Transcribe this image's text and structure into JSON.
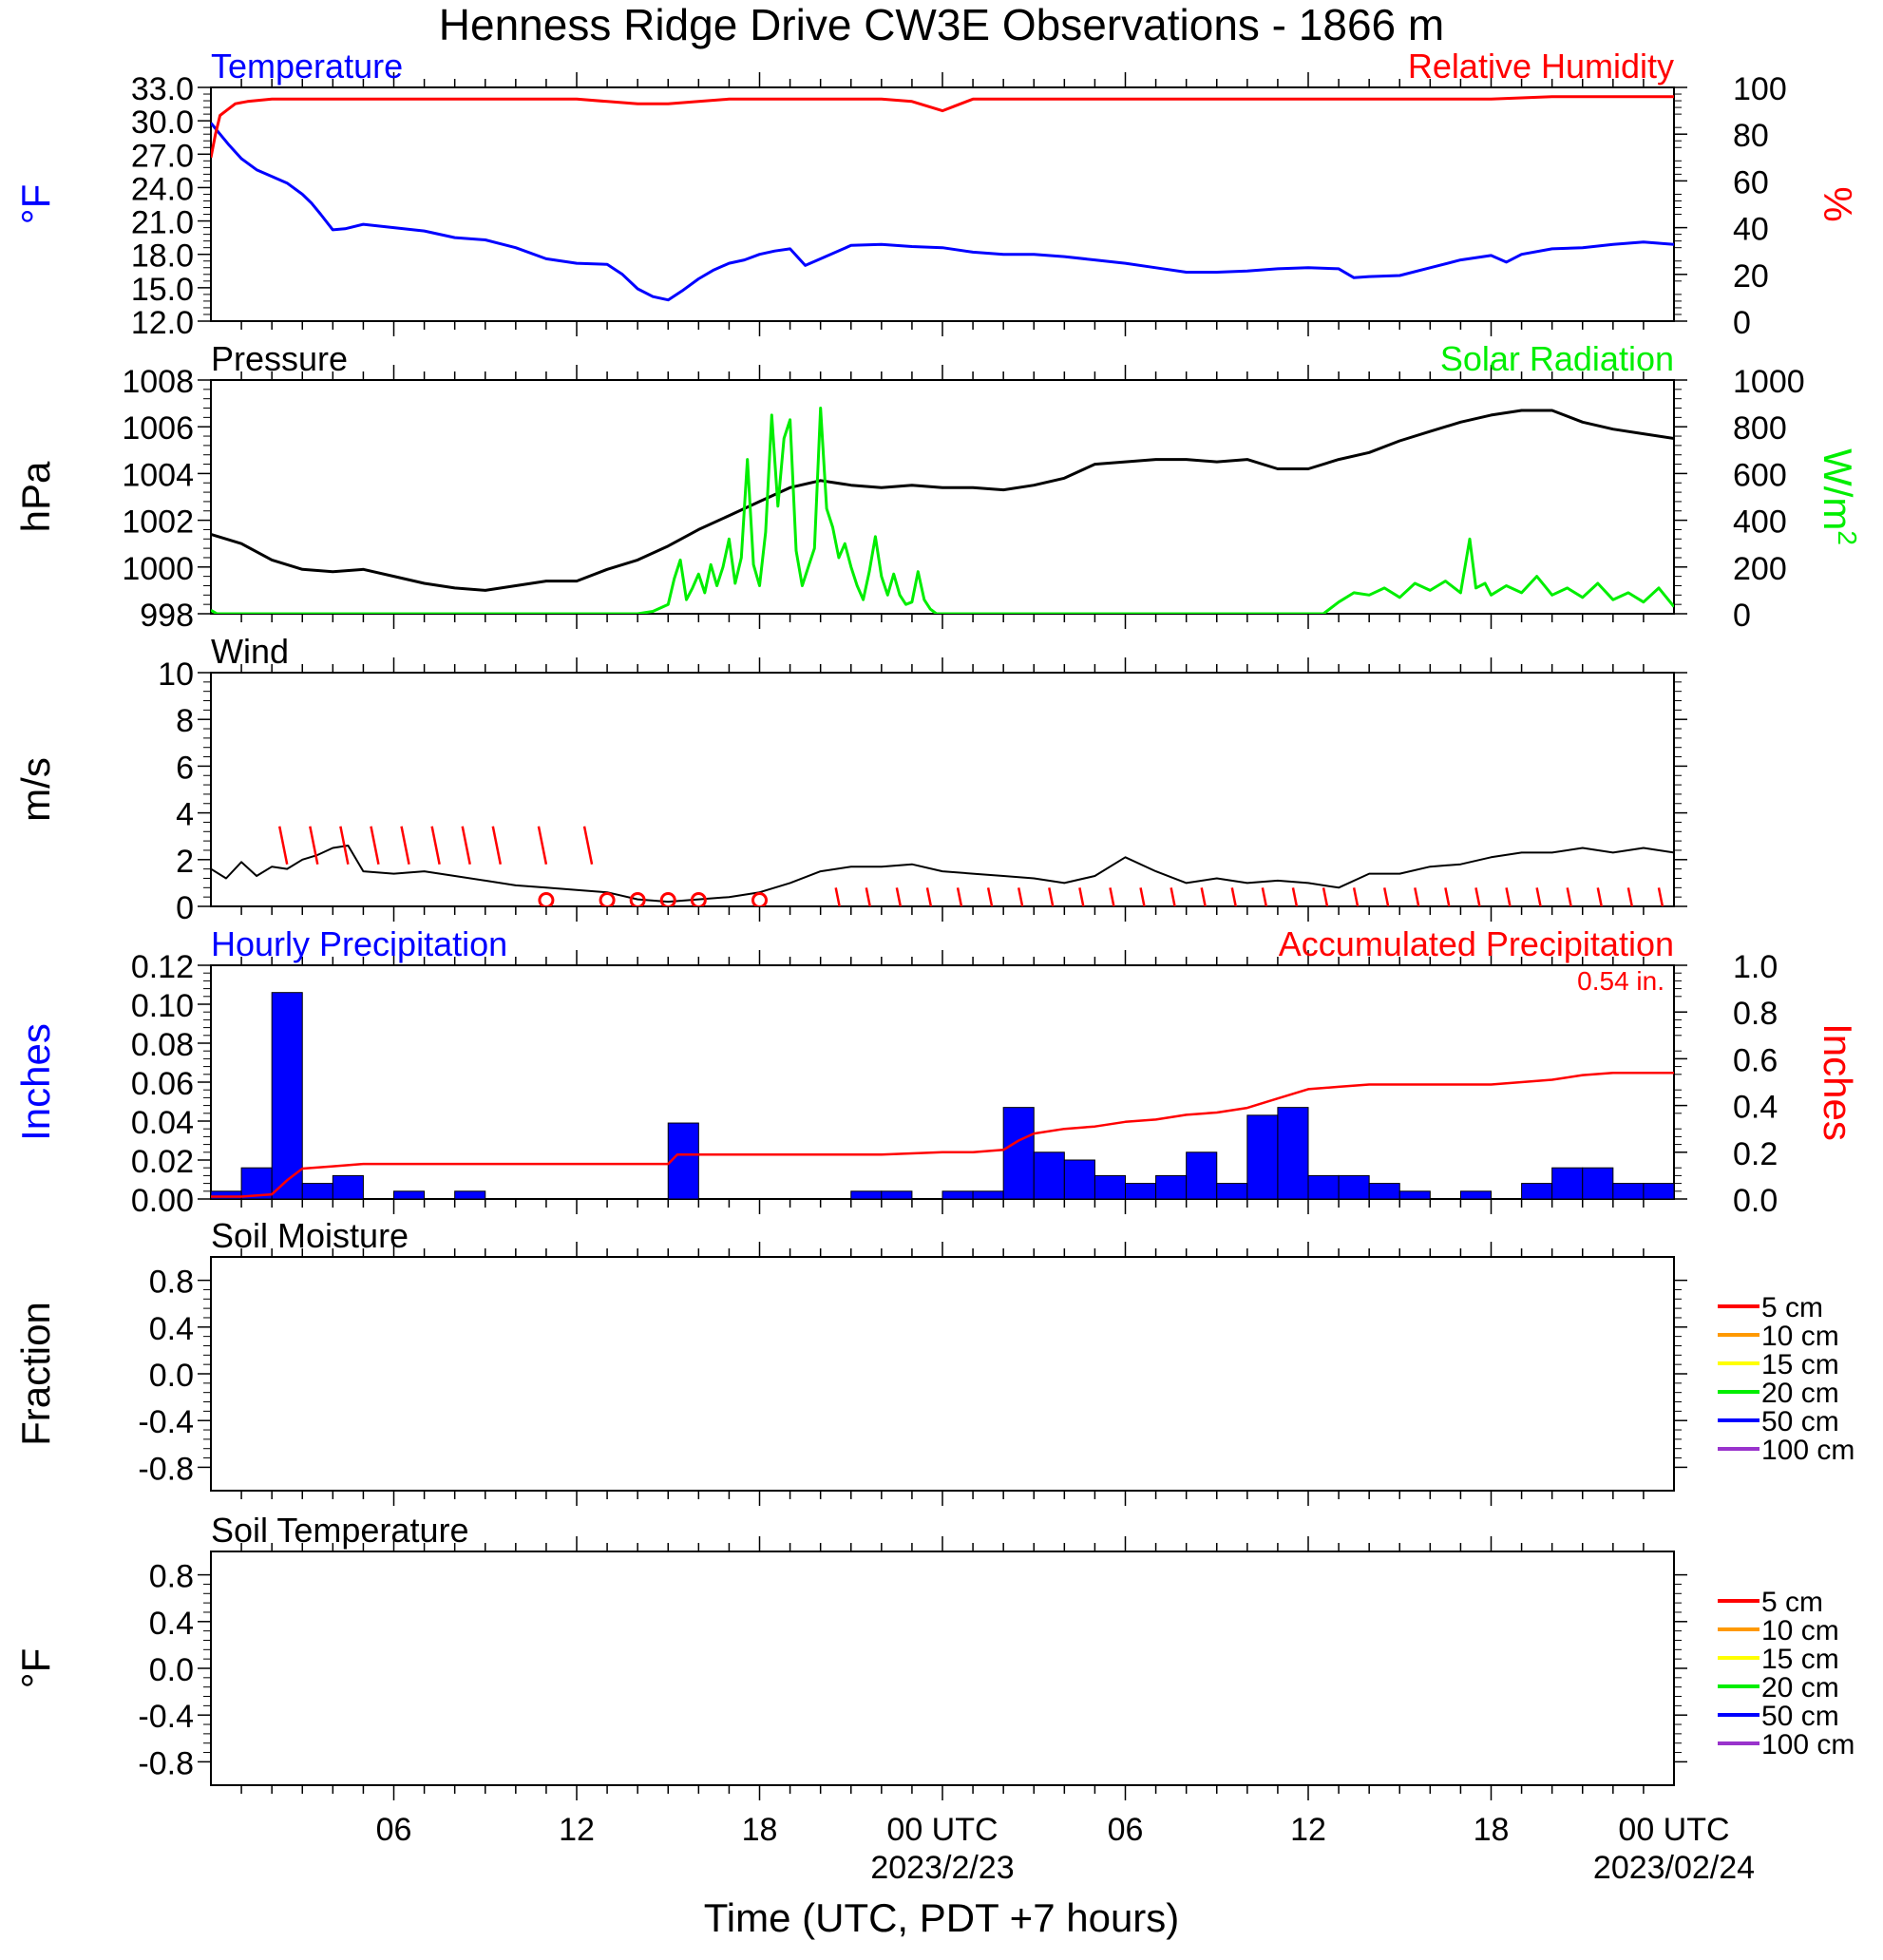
{
  "page": {
    "title": "Henness Ridge Drive CW3E Observations - 1866 m",
    "xlabel": "Time (UTC, PDT +7 hours)"
  },
  "time_axis": {
    "range_hours": [
      0,
      48
    ],
    "tick_hours": [
      6,
      12,
      18,
      24,
      30,
      36,
      42,
      48
    ],
    "tick_labels": [
      "06",
      "12",
      "18",
      "00 UTC",
      "06",
      "12",
      "18",
      "00 UTC"
    ],
    "date_labels": [
      {
        "hour": 24,
        "text": "2023/2/23"
      },
      {
        "hour": 48,
        "text": "2023/02/24"
      }
    ]
  },
  "colors": {
    "temperature": "#0000ff",
    "humidity": "#ff0000",
    "pressure": "#000000",
    "solar": "#00ee00",
    "wind": "#000000",
    "barb": "#ff0000",
    "hourly_precip": "#0000ff",
    "accum_precip": "#ff0000"
  },
  "chart_data": [
    {
      "id": "temp_rh",
      "type": "line",
      "title_left": "Temperature",
      "title_right": "Relative Humidity",
      "ylabel_left": "°F",
      "ylabel_right": "%",
      "ylim_left": [
        12.0,
        33.0
      ],
      "yticks_left": [
        "12.0",
        "15.0",
        "18.0",
        "21.0",
        "24.0",
        "27.0",
        "30.0",
        "33.0"
      ],
      "ylim_right": [
        0,
        100
      ],
      "yticks_right": [
        "0",
        "20",
        "40",
        "60",
        "80",
        "100"
      ],
      "series": [
        {
          "name": "Temperature",
          "axis": "left",
          "color": "#0000ff",
          "x": [
            0,
            0.3,
            0.6,
            1,
            1.5,
            2,
            2.5,
            3,
            3.3,
            3.6,
            4,
            4.4,
            5,
            6,
            7,
            8,
            9,
            10,
            11,
            12,
            13,
            13.5,
            14,
            14.5,
            15,
            15.5,
            16,
            16.5,
            17,
            17.5,
            18,
            18.5,
            19,
            19.5,
            20,
            20.5,
            21,
            22,
            23,
            24,
            25,
            26,
            27,
            28,
            29,
            30,
            31,
            32,
            33,
            34,
            35,
            36,
            37,
            37.5,
            38,
            39,
            40,
            41,
            42,
            42.5,
            43,
            44,
            45,
            46,
            47,
            48
          ],
          "values": [
            29.8,
            28.8,
            27.8,
            26.6,
            25.6,
            25.0,
            24.4,
            23.4,
            22.6,
            21.6,
            20.2,
            20.3,
            20.7,
            20.4,
            20.1,
            19.5,
            19.3,
            18.6,
            17.6,
            17.2,
            17.1,
            16.2,
            14.9,
            14.2,
            13.9,
            14.8,
            15.8,
            16.6,
            17.2,
            17.5,
            18.0,
            18.3,
            18.5,
            17.0,
            17.6,
            18.2,
            18.8,
            18.9,
            18.7,
            18.6,
            18.2,
            18.0,
            18.0,
            17.8,
            17.5,
            17.2,
            16.8,
            16.4,
            16.4,
            16.5,
            16.7,
            16.8,
            16.7,
            15.9,
            16.0,
            16.1,
            16.8,
            17.5,
            17.9,
            17.3,
            18.0,
            18.5,
            18.6,
            18.9,
            19.1,
            18.9
          ]
        },
        {
          "name": "Relative Humidity",
          "axis": "right",
          "color": "#ff0000",
          "x": [
            0,
            0.15,
            0.3,
            0.5,
            0.8,
            1.2,
            2,
            4,
            6,
            8,
            10,
            12,
            13,
            14,
            15,
            16,
            17,
            18,
            19,
            20,
            21,
            22,
            23,
            23.5,
            24,
            24.4,
            25,
            26,
            28,
            30,
            32,
            34,
            36,
            38,
            40,
            42,
            44,
            46,
            48
          ],
          "values": [
            70,
            80,
            88,
            90,
            93,
            94,
            95,
            95,
            95,
            95,
            95,
            95,
            94,
            93,
            93,
            94,
            95,
            95,
            95,
            95,
            95,
            95,
            94,
            92,
            90,
            92,
            95,
            95,
            95,
            95,
            95,
            95,
            95,
            95,
            95,
            95,
            96,
            96,
            96
          ]
        }
      ]
    },
    {
      "id": "pressure_solar",
      "type": "line",
      "title_left": "Pressure",
      "title_right": "Solar Radiation",
      "ylabel_left": "hPa",
      "ylabel_right": "W/m",
      "ylabel_right_sup": "2",
      "ylim_left": [
        998,
        1008
      ],
      "yticks_left": [
        "998",
        "1000",
        "1002",
        "1004",
        "1006",
        "1008"
      ],
      "ylim_right": [
        0,
        1000
      ],
      "yticks_right": [
        "0",
        "200",
        "400",
        "600",
        "800",
        "1000"
      ],
      "series": [
        {
          "name": "Pressure",
          "axis": "left",
          "color": "#000000",
          "x": [
            0,
            1,
            2,
            3,
            4,
            5,
            6,
            7,
            8,
            9,
            10,
            11,
            12,
            13,
            14,
            15,
            16,
            17,
            18,
            19,
            20,
            21,
            22,
            23,
            24,
            25,
            26,
            27,
            28,
            29,
            30,
            31,
            32,
            33,
            34,
            35,
            36,
            37,
            38,
            39,
            40,
            41,
            42,
            43,
            44,
            45,
            46,
            47,
            48
          ],
          "values": [
            1001.4,
            1001.0,
            1000.3,
            999.9,
            999.8,
            999.9,
            999.6,
            999.3,
            999.1,
            999.0,
            999.2,
            999.4,
            999.4,
            999.9,
            1000.3,
            1000.9,
            1001.6,
            1002.2,
            1002.8,
            1003.4,
            1003.7,
            1003.5,
            1003.4,
            1003.5,
            1003.4,
            1003.4,
            1003.3,
            1003.5,
            1003.8,
            1004.4,
            1004.5,
            1004.6,
            1004.6,
            1004.5,
            1004.6,
            1004.2,
            1004.2,
            1004.6,
            1004.9,
            1005.4,
            1005.8,
            1006.2,
            1006.5,
            1006.7,
            1006.7,
            1006.2,
            1005.9,
            1005.7,
            1005.5
          ]
        },
        {
          "name": "Solar Radiation",
          "axis": "right",
          "color": "#00ee00",
          "x": [
            0,
            0.2,
            0.5,
            14.0,
            14.5,
            15.0,
            15.2,
            15.4,
            15.6,
            15.8,
            16.0,
            16.2,
            16.4,
            16.6,
            16.8,
            17.0,
            17.2,
            17.4,
            17.6,
            17.8,
            18.0,
            18.2,
            18.4,
            18.6,
            18.8,
            19.0,
            19.2,
            19.4,
            19.6,
            19.8,
            20.0,
            20.2,
            20.4,
            20.6,
            20.8,
            21.0,
            21.2,
            21.4,
            21.6,
            21.8,
            22.0,
            22.2,
            22.4,
            22.6,
            22.8,
            23.0,
            23.2,
            23.4,
            23.6,
            23.8,
            24.0,
            24.4,
            24.8,
            36.5,
            37.0,
            37.5,
            38.0,
            38.5,
            39.0,
            39.5,
            40.0,
            40.5,
            41.0,
            41.3,
            41.5,
            41.8,
            42.0,
            42.5,
            43.0,
            43.5,
            44.0,
            44.5,
            45.0,
            45.5,
            46.0,
            46.5,
            47.0,
            47.5,
            48.0
          ],
          "values": [
            15,
            0,
            0,
            0,
            10,
            40,
            150,
            230,
            60,
            110,
            170,
            90,
            210,
            120,
            200,
            320,
            130,
            240,
            660,
            210,
            120,
            350,
            850,
            460,
            750,
            830,
            270,
            120,
            200,
            280,
            880,
            450,
            370,
            240,
            300,
            200,
            120,
            60,
            180,
            330,
            160,
            80,
            170,
            80,
            40,
            50,
            180,
            60,
            20,
            0,
            0,
            0,
            0,
            0,
            50,
            90,
            80,
            110,
            70,
            130,
            100,
            140,
            90,
            320,
            110,
            130,
            80,
            120,
            90,
            160,
            80,
            110,
            70,
            130,
            60,
            90,
            50,
            110,
            30
          ]
        }
      ]
    },
    {
      "id": "wind",
      "type": "line",
      "title_left": "Wind",
      "ylabel_left": "m/s",
      "ylim_left": [
        0,
        10
      ],
      "yticks_left": [
        "0",
        "2",
        "4",
        "6",
        "8",
        "10"
      ],
      "series": [
        {
          "name": "Wind",
          "axis": "left",
          "color": "#000000",
          "x": [
            0,
            0.5,
            1,
            1.5,
            2,
            2.5,
            3,
            3.5,
            4,
            4.5,
            5,
            6,
            7,
            8,
            9,
            10,
            11,
            12,
            13,
            14,
            15,
            16,
            17,
            18,
            19,
            20,
            21,
            22,
            23,
            24,
            25,
            26,
            27,
            28,
            29,
            30,
            31,
            32,
            33,
            34,
            35,
            36,
            37,
            38,
            39,
            40,
            41,
            42,
            43,
            44,
            45,
            46,
            47,
            48
          ],
          "values": [
            1.6,
            1.2,
            1.9,
            1.3,
            1.7,
            1.6,
            2.0,
            2.2,
            2.5,
            2.6,
            1.5,
            1.4,
            1.5,
            1.3,
            1.1,
            0.9,
            0.8,
            0.7,
            0.6,
            0.3,
            0.2,
            0.3,
            0.4,
            0.6,
            1.0,
            1.5,
            1.7,
            1.7,
            1.8,
            1.5,
            1.4,
            1.3,
            1.2,
            1.0,
            1.3,
            2.1,
            1.5,
            1.0,
            1.2,
            1.0,
            1.1,
            1.0,
            0.8,
            1.4,
            1.4,
            1.7,
            1.8,
            2.1,
            2.3,
            2.3,
            2.5,
            2.3,
            2.5,
            2.3
          ]
        }
      ],
      "barbs": {
        "description": "Wind direction barbs (red) and calm markers (red circles)",
        "hours": [
          2.5,
          3.5,
          4.5,
          5.5,
          6.5,
          7.5,
          8.5,
          9.5,
          11,
          12.5,
          20.5,
          21.5,
          22.5,
          23.5,
          24.5,
          25.5,
          26.5,
          27.5,
          28.5,
          29.5,
          30.5,
          31.5,
          32.5,
          33.5,
          34.5,
          35.5,
          36.5,
          37.5,
          38.5,
          39.5,
          40.5,
          41.5,
          42.5,
          43.5,
          44.5,
          45.5,
          46.5,
          47.5
        ],
        "calm_hours": [
          11,
          13,
          14,
          15,
          16,
          18
        ]
      }
    },
    {
      "id": "precip",
      "type": "bar",
      "title_left": "Hourly Precipitation",
      "title_right": "Accumulated Precipitation",
      "total_label": "0.54 in.",
      "ylabel_left": "Inches",
      "ylabel_right": "Inches",
      "ylim_left": [
        0.0,
        0.12
      ],
      "yticks_left": [
        "0.00",
        "0.02",
        "0.04",
        "0.06",
        "0.08",
        "0.10",
        "0.12"
      ],
      "ylim_right": [
        0.0,
        1.0
      ],
      "yticks_right": [
        "0.0",
        "0.2",
        "0.4",
        "0.6",
        "0.8",
        "1.0"
      ],
      "series": [
        {
          "name": "Hourly Precipitation",
          "axis": "left",
          "color": "#0000ff",
          "x": [
            0,
            1,
            2,
            3,
            4,
            6,
            8,
            15,
            21,
            22,
            24,
            25,
            26,
            27,
            28,
            29,
            30,
            31,
            32,
            33,
            34,
            35,
            36,
            37,
            38,
            39,
            41,
            43,
            44,
            45,
            46,
            47
          ],
          "values": [
            0.004,
            0.016,
            0.106,
            0.008,
            0.012,
            0.004,
            0.004,
            0.039,
            0.004,
            0.004,
            0.004,
            0.004,
            0.047,
            0.024,
            0.02,
            0.012,
            0.008,
            0.012,
            0.024,
            0.008,
            0.043,
            0.047,
            0.012,
            0.012,
            0.008,
            0.004,
            0.004,
            0.008,
            0.016,
            0.016,
            0.008,
            0.008
          ]
        },
        {
          "name": "Accumulated Precipitation",
          "axis": "right",
          "color": "#ff0000",
          "x": [
            0,
            1,
            2,
            2.5,
            3,
            4,
            5,
            6,
            8,
            15,
            15.3,
            16,
            22,
            24,
            25,
            26,
            26.5,
            27,
            28,
            29,
            30,
            31,
            32,
            33,
            34,
            35,
            36,
            37,
            38,
            39,
            40,
            41,
            42,
            43,
            44,
            45,
            46,
            47,
            48
          ],
          "values": [
            0.01,
            0.01,
            0.02,
            0.08,
            0.13,
            0.14,
            0.15,
            0.15,
            0.15,
            0.15,
            0.19,
            0.19,
            0.19,
            0.2,
            0.2,
            0.21,
            0.25,
            0.28,
            0.3,
            0.31,
            0.33,
            0.34,
            0.36,
            0.37,
            0.39,
            0.43,
            0.47,
            0.48,
            0.49,
            0.49,
            0.49,
            0.49,
            0.49,
            0.5,
            0.51,
            0.53,
            0.54,
            0.54,
            0.54
          ]
        }
      ]
    },
    {
      "id": "soil_moisture",
      "type": "line",
      "title_left": "Soil Moisture",
      "ylabel_left": "Fraction",
      "ylim_left": [
        -1.0,
        1.0
      ],
      "yticks_left": [
        "-0.8",
        "-0.4",
        "0.0",
        "0.4",
        "0.8"
      ],
      "legend": {
        "placement": "right",
        "entries": [
          {
            "label": "5 cm",
            "color": "#ff0000"
          },
          {
            "label": "10 cm",
            "color": "#ff9900"
          },
          {
            "label": "15 cm",
            "color": "#ffff00"
          },
          {
            "label": "20 cm",
            "color": "#00ee00"
          },
          {
            "label": "50 cm",
            "color": "#0000ff"
          },
          {
            "label": "100 cm",
            "color": "#9933cc"
          }
        ]
      },
      "series": []
    },
    {
      "id": "soil_temperature",
      "type": "line",
      "title_left": "Soil Temperature",
      "ylabel_left": "°F",
      "ylim_left": [
        -1.0,
        1.0
      ],
      "yticks_left": [
        "-0.8",
        "-0.4",
        "0.0",
        "0.4",
        "0.8"
      ],
      "legend": {
        "placement": "right",
        "entries": [
          {
            "label": "5 cm",
            "color": "#ff0000"
          },
          {
            "label": "10 cm",
            "color": "#ff9900"
          },
          {
            "label": "15 cm",
            "color": "#ffff00"
          },
          {
            "label": "20 cm",
            "color": "#00ee00"
          },
          {
            "label": "50 cm",
            "color": "#0000ff"
          },
          {
            "label": "100 cm",
            "color": "#9933cc"
          }
        ]
      },
      "series": []
    }
  ]
}
